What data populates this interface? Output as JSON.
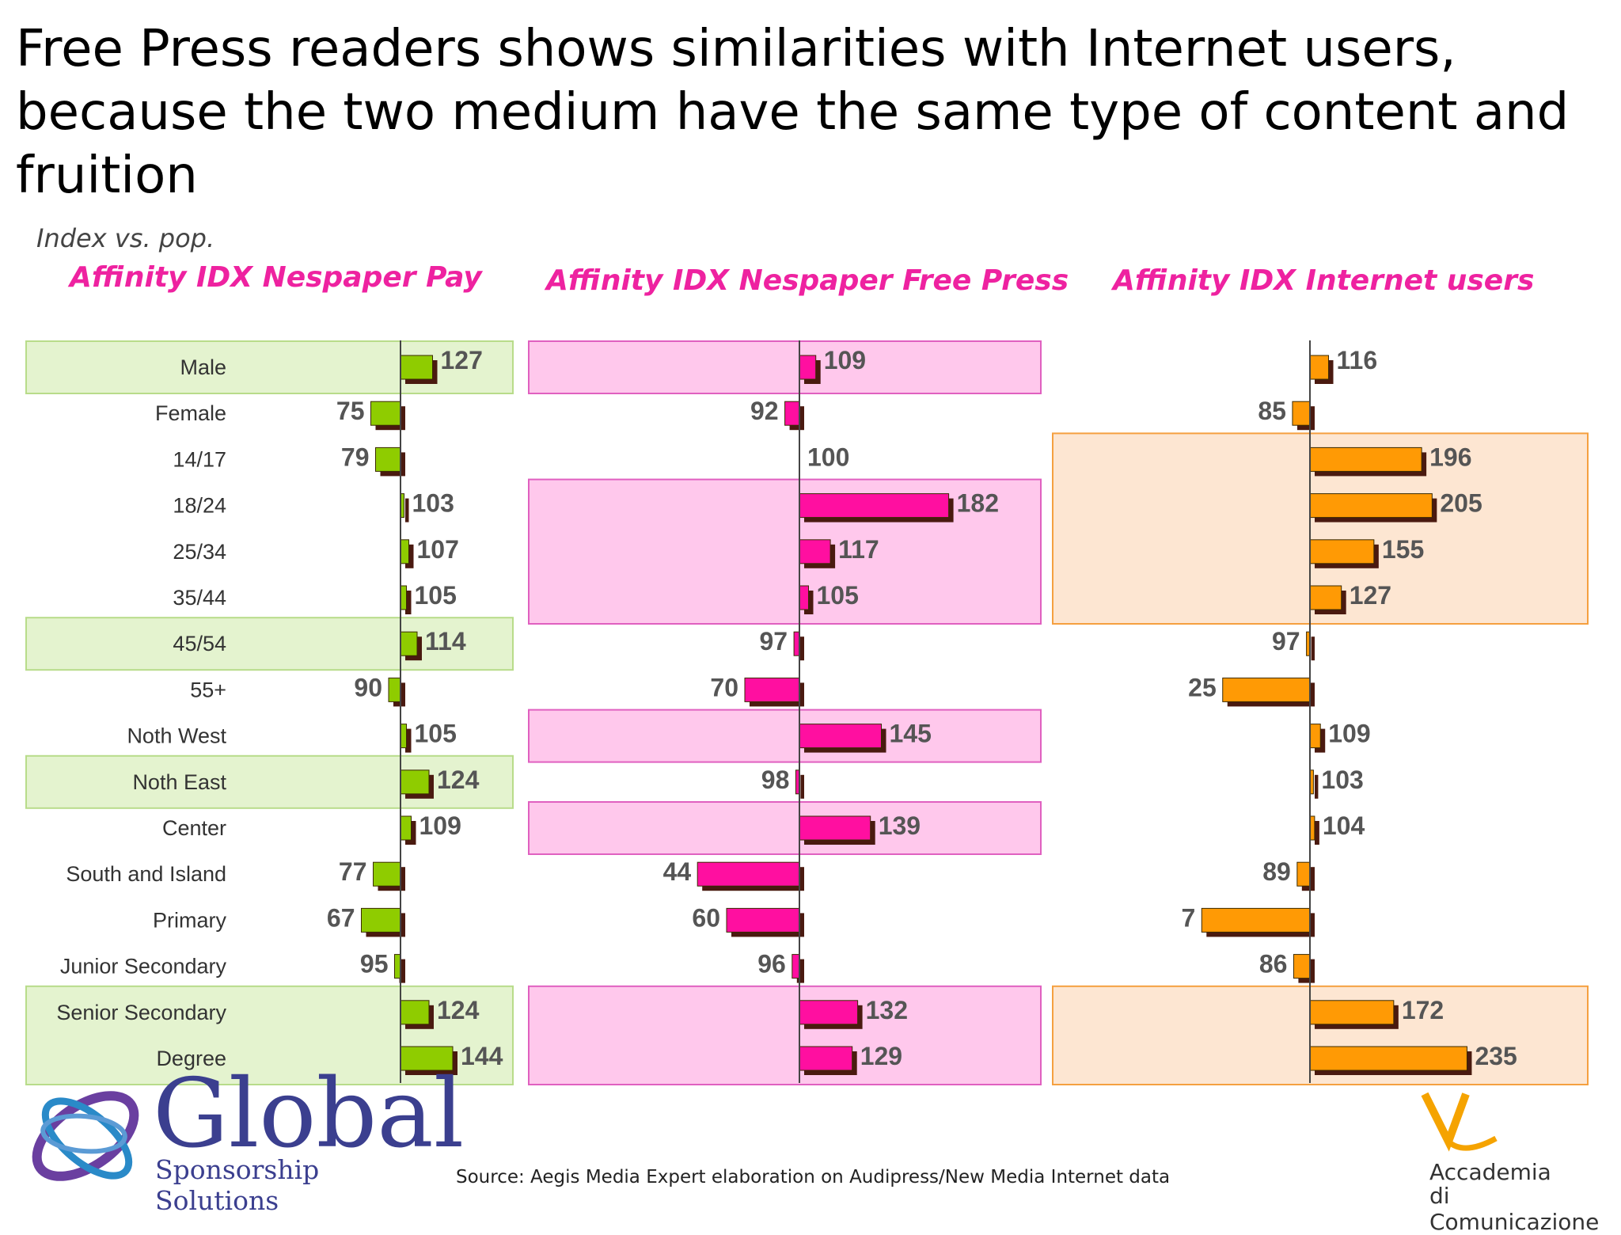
{
  "title": "Free Press readers shows similarities with Internet users, because the two medium have the same type of content and fruition",
  "subtitle": "Index vs. pop.",
  "source": "Source: Aegis Media  Expert elaboration on Audipress/New Media Internet data",
  "logos": {
    "global_word": "Global",
    "global_tagline": "Sponsorship Solutions",
    "academy_line1": "Accademia",
    "academy_line2": "di Comunicazione"
  },
  "colors": {
    "green": "#8fcc00",
    "pink": "#ff0fa0",
    "orange": "#ff9a05",
    "title_pink": "#ee22a0",
    "green_highlight": "#e4f3cf",
    "pink_highlight": "#ffc8ec",
    "orange_highlight": "#fde6d2"
  },
  "chart_data": [
    {
      "type": "bar",
      "title": "Affinity IDX Nespaper Pay",
      "categories": [
        "Male",
        "Female",
        "14/17",
        "18/24",
        "25/34",
        "35/44",
        "45/54",
        "55+",
        "Noth West",
        "Noth East",
        "Center",
        "South and Island",
        "Primary",
        "Junior Secondary",
        "Senior Secondary",
        "Degree"
      ],
      "values": [
        127,
        75,
        79,
        103,
        107,
        105,
        114,
        90,
        105,
        124,
        109,
        77,
        67,
        95,
        124,
        144
      ],
      "baseline": 100,
      "color": "green",
      "highlighted": [
        "Male",
        "45/54",
        "Noth East",
        "Senior Secondary",
        "Degree"
      ]
    },
    {
      "type": "bar",
      "title": "Affinity IDX Nespaper Free Press",
      "categories": [
        "Male",
        "Female",
        "14/17",
        "18/24",
        "25/34",
        "35/44",
        "45/54",
        "55+",
        "Noth West",
        "Noth East",
        "Center",
        "South and Island",
        "Primary",
        "Junior Secondary",
        "Senior Secondary",
        "Degree"
      ],
      "values": [
        109,
        92,
        100,
        182,
        117,
        105,
        97,
        70,
        145,
        98,
        139,
        44,
        60,
        96,
        132,
        129
      ],
      "baseline": 100,
      "color": "pink",
      "highlighted": [
        "Male",
        "18/24",
        "25/34",
        "35/44",
        "Noth West",
        "Center",
        "Senior Secondary",
        "Degree"
      ]
    },
    {
      "type": "bar",
      "title": "Affinity IDX Internet users",
      "categories": [
        "Male",
        "Female",
        "14/17",
        "18/24",
        "25/34",
        "35/44",
        "45/54",
        "55+",
        "Noth West",
        "Noth East",
        "Center",
        "South and Island",
        "Primary",
        "Junior Secondary",
        "Senior Secondary",
        "Degree"
      ],
      "values": [
        116,
        85,
        196,
        205,
        155,
        127,
        97,
        25,
        109,
        103,
        104,
        89,
        7,
        86,
        172,
        235
      ],
      "baseline": 100,
      "color": "orange",
      "highlighted": [
        "14/17",
        "18/24",
        "25/34",
        "35/44",
        "Senior Secondary",
        "Degree"
      ]
    }
  ]
}
